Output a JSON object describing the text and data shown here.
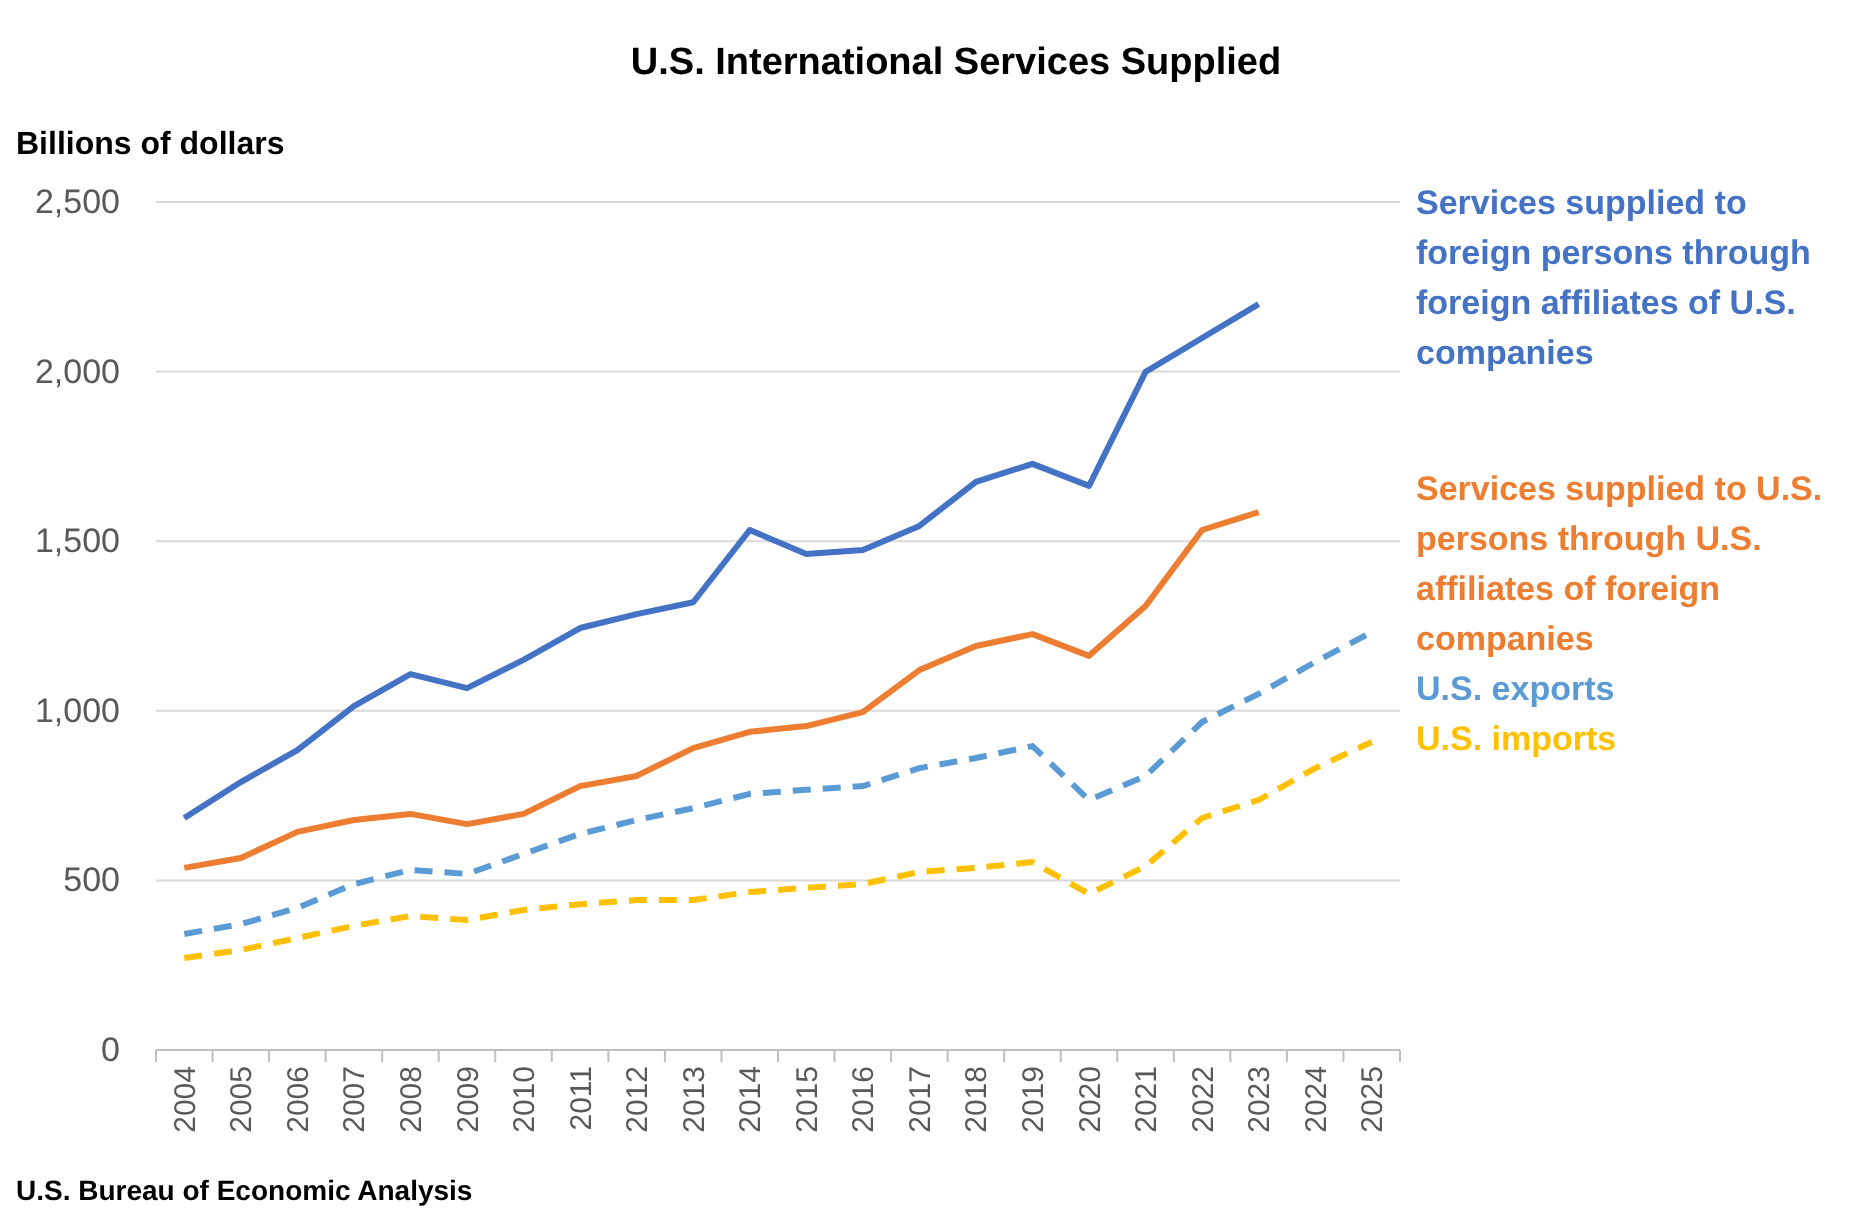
{
  "chart_data": {
    "type": "line",
    "title": "U.S. International Services Supplied",
    "ylabel": "Billions of dollars",
    "categories": [
      "2004",
      "2005",
      "2006",
      "2007",
      "2008",
      "2009",
      "2010",
      "2011",
      "2012",
      "2013",
      "2014",
      "2015",
      "2016",
      "2017",
      "2018",
      "2019",
      "2020",
      "2021",
      "2022",
      "2023",
      "2024",
      "2025"
    ],
    "series": [
      {
        "name": "Services supplied to foreign persons through foreign affiliates of U.S. companies",
        "color": "#4472c4",
        "line_style": "solid",
        "values": [
          684,
          790,
          884,
          1014,
          1108,
          1067,
          1150,
          1244,
          1285,
          1320,
          1533,
          1462,
          1474,
          1545,
          1675,
          1728,
          1663,
          1999,
          2099,
          2199,
          null,
          null
        ]
      },
      {
        "name": "Services supplied to U.S. persons through U.S. affiliates of foreign companies",
        "color": "#ed7d31",
        "line_style": "solid",
        "values": [
          537,
          566,
          643,
          678,
          696,
          666,
          696,
          778,
          808,
          890,
          938,
          955,
          996,
          1120,
          1191,
          1226,
          1162,
          1309,
          1533,
          1586,
          null,
          null
        ]
      },
      {
        "name": "U.S. exports",
        "color": "#5b9bd5",
        "line_style": "dashed",
        "values": [
          342,
          371,
          419,
          489,
          531,
          519,
          578,
          637,
          678,
          713,
          755,
          767,
          778,
          831,
          861,
          896,
          737,
          808,
          967,
          1050,
          1144,
          1232
        ]
      },
      {
        "name": "U.S. imports",
        "color": "#ffc000",
        "line_style": "dashed",
        "values": [
          271,
          295,
          330,
          366,
          395,
          383,
          413,
          430,
          442,
          442,
          466,
          478,
          489,
          525,
          537,
          554,
          460,
          542,
          684,
          737,
          831,
          908
        ]
      }
    ],
    "ylim": [
      0,
      2500
    ],
    "yticks": [
      0,
      500,
      {
        "value": 1000,
        "label": "1,000"
      },
      {
        "value": 1500,
        "label": "1,500"
      },
      {
        "value": 2000,
        "label": "2,000"
      },
      {
        "value": 2500,
        "label": "2,500"
      }
    ],
    "grid": "y",
    "legend": "right",
    "marker": "none",
    "annotations": [
      "U.S. Bureau of Economic Analysis"
    ]
  }
}
